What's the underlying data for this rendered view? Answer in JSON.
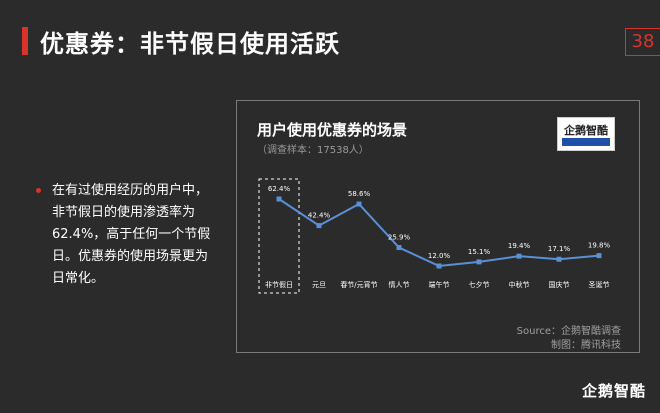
{
  "slide": {
    "title": "优惠券：非节假日使用活跃",
    "page_number": "38",
    "bullet": "在有过使用经历的用户中，非节假日的使用渗透率为62.4%，高于任何一个节假日。优惠券的使用场景更为日常化。",
    "brand_footer": "企鹅智酷"
  },
  "chart_data": {
    "type": "line",
    "title": "用户使用优惠券的场景",
    "subtitle": "（调查样本：17538人）",
    "categories": [
      "非节假日",
      "元旦",
      "春节/元宵节",
      "情人节",
      "端午节",
      "七夕节",
      "中秋节",
      "国庆节",
      "圣诞节"
    ],
    "values": [
      62.4,
      42.4,
      58.6,
      25.9,
      12.0,
      15.1,
      19.4,
      17.1,
      19.8
    ],
    "value_labels": [
      "62.4%",
      "42.4%",
      "58.6%",
      "25.9%",
      "12.0%",
      "15.1%",
      "19.4%",
      "17.1%",
      "19.8%"
    ],
    "highlight_category": "非节假日",
    "source": "Source：企鹅智酷调查",
    "credit": "制图：腾讯科技",
    "logo_text": "企鹅智酷",
    "line_color": "#5b8fd6",
    "grid": false
  },
  "colors": {
    "accent": "#d9342b",
    "background": "#2b2b2b",
    "line": "#5b8fd6"
  }
}
